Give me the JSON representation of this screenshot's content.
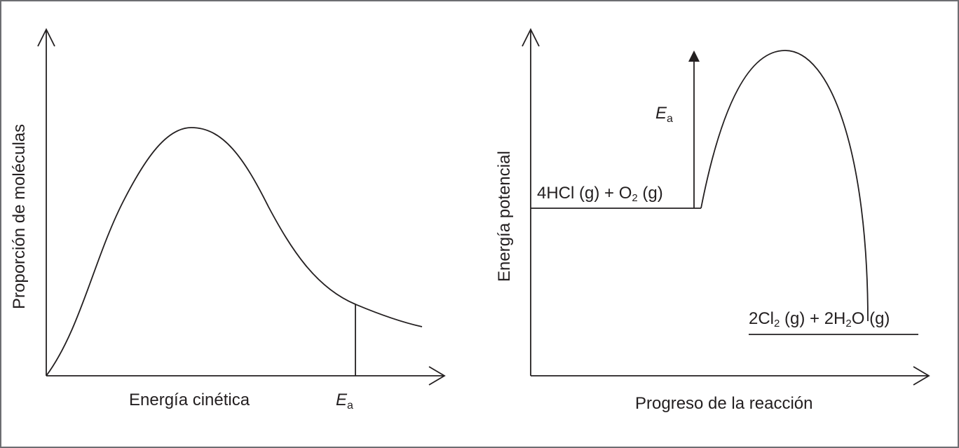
{
  "left_diagram": {
    "x_axis_label": "Energía cinética",
    "y_axis_label": "Proporción de moléculas",
    "ea_label": {
      "main": "E",
      "sub": "a"
    }
  },
  "right_diagram": {
    "x_axis_label": "Progreso de la reacción",
    "y_axis_label": "Energía potencial",
    "ea_label": {
      "main": "E",
      "sub": "a"
    },
    "reactants": {
      "part1": "4HCl (g) + O",
      "sub": "2",
      "part2": " (g)"
    },
    "products": {
      "part1": "2Cl",
      "sub1": "2",
      "part2": " (g) + 2H",
      "sub2": "2",
      "part3": "O (g)"
    }
  },
  "colors": {
    "ink": "#231f20",
    "frame": "#6d6e71",
    "background": "#ffffff"
  }
}
